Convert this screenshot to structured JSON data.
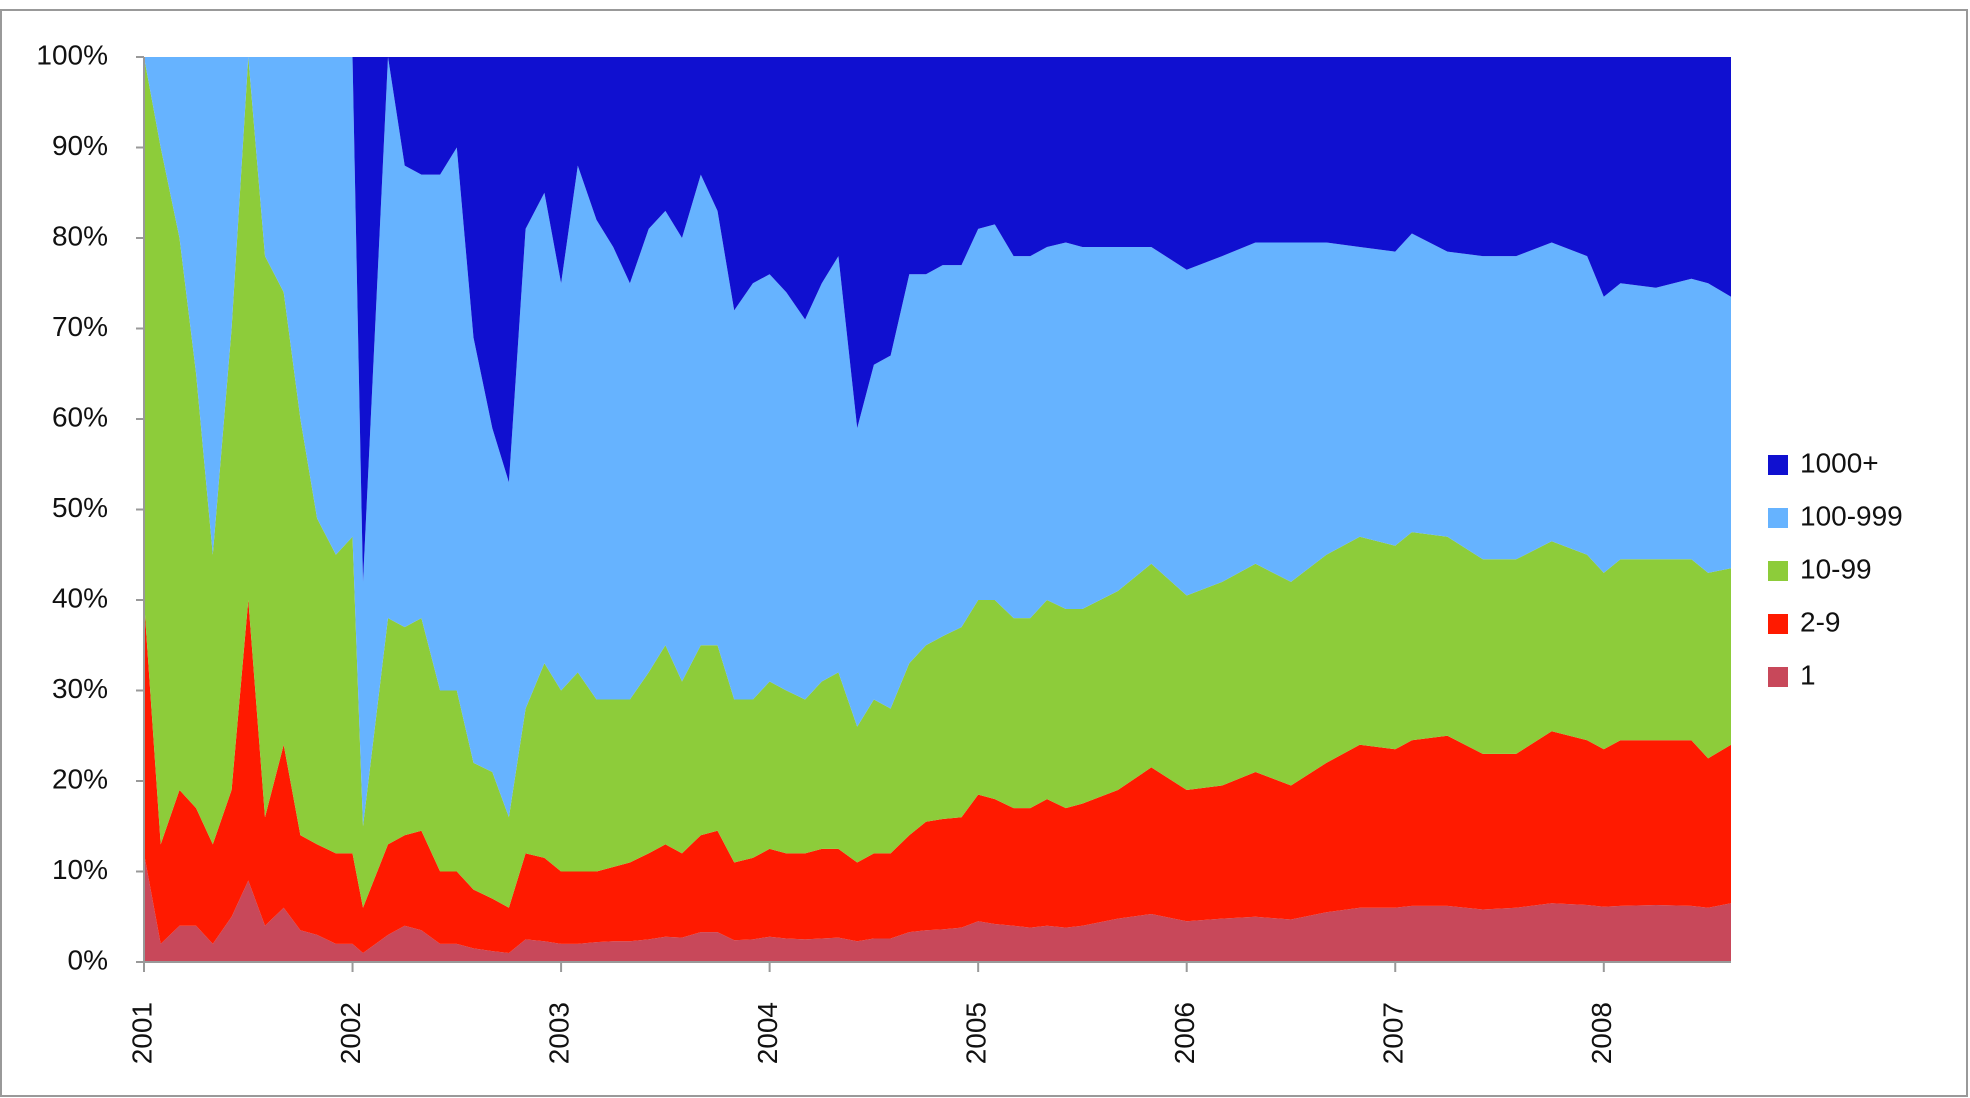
{
  "chart_data": {
    "type": "stacked-area",
    "x": [
      2001.0,
      2001.08,
      2001.17,
      2001.25,
      2001.33,
      2001.42,
      2001.5,
      2001.58,
      2001.67,
      2001.75,
      2001.83,
      2001.92,
      2002.0,
      2002.05,
      2002.17,
      2002.25,
      2002.33,
      2002.42,
      2002.5,
      2002.58,
      2002.67,
      2002.75,
      2002.83,
      2002.92,
      2003.0,
      2003.08,
      2003.17,
      2003.25,
      2003.33,
      2003.42,
      2003.5,
      2003.58,
      2003.67,
      2003.75,
      2003.83,
      2003.92,
      2004.0,
      2004.08,
      2004.17,
      2004.25,
      2004.33,
      2004.42,
      2004.5,
      2004.58,
      2004.67,
      2004.75,
      2004.83,
      2004.92,
      2005.0,
      2005.08,
      2005.17,
      2005.25,
      2005.33,
      2005.42,
      2005.5,
      2005.67,
      2005.83,
      2006.0,
      2006.17,
      2006.33,
      2006.5,
      2006.67,
      2006.83,
      2007.0,
      2007.08,
      2007.25,
      2007.42,
      2007.58,
      2007.75,
      2007.92,
      2008.0,
      2008.08,
      2008.25,
      2008.42,
      2008.5,
      2008.61
    ],
    "series": [
      {
        "name": "1",
        "color": "#c8485a",
        "values": [
          12,
          2,
          4,
          4,
          2,
          5,
          9,
          4,
          6,
          3.5,
          3,
          2,
          2,
          1,
          3,
          4,
          3.5,
          2,
          2,
          1.5,
          1.2,
          1,
          2.5,
          2.3,
          2,
          2,
          2.2,
          2.3,
          2.3,
          2.5,
          2.8,
          2.7,
          3.3,
          3.3,
          2.4,
          2.5,
          2.8,
          2.6,
          2.5,
          2.6,
          2.7,
          2.3,
          2.6,
          2.6,
          3.3,
          3.5,
          3.6,
          3.8,
          4.5,
          4.2,
          4,
          3.8,
          4,
          3.8,
          4,
          4.8,
          5.3,
          4.5,
          4.8,
          5,
          4.7,
          5.5,
          6,
          6,
          6.2,
          6.2,
          5.8,
          6,
          6.5,
          6.3,
          6.1,
          6.2,
          6.3,
          6.2,
          6,
          6.5
        ]
      },
      {
        "name": "2-9",
        "color": "#ff1a00",
        "values": [
          28,
          11,
          15,
          13,
          11,
          14,
          31,
          12,
          18,
          10.5,
          10,
          10,
          10,
          5,
          10,
          10,
          11,
          8,
          8,
          6.5,
          5.8,
          5,
          9.5,
          9.2,
          8,
          8,
          7.8,
          8.2,
          8.7,
          9.5,
          10.2,
          9.3,
          10.7,
          11.2,
          8.6,
          9,
          9.7,
          9.4,
          9.5,
          9.9,
          9.8,
          8.7,
          9.4,
          9.4,
          10.7,
          12,
          12.2,
          12.2,
          14,
          13.8,
          13,
          13.2,
          14,
          13.2,
          13.5,
          14.2,
          16.2,
          14.5,
          14.7,
          16,
          14.8,
          16.5,
          18,
          17.5,
          18.3,
          18.8,
          17.2,
          17,
          19,
          18.2,
          17.4,
          18.3,
          18.2,
          18.3,
          16.5,
          17.5
        ]
      },
      {
        "name": "10-99",
        "color": "#8dcc3a",
        "values": [
          60,
          77,
          61,
          48,
          32,
          51,
          60,
          62,
          50,
          46,
          36,
          33,
          35,
          9,
          25,
          23,
          23.5,
          20,
          20,
          14,
          14,
          10,
          16,
          21.5,
          20,
          22,
          19,
          18.5,
          18,
          20,
          22,
          19,
          21,
          20.5,
          18,
          17.5,
          18.5,
          18,
          17,
          18.5,
          19.5,
          15,
          17,
          16,
          19,
          19.5,
          20.2,
          21,
          21.5,
          22,
          21,
          21,
          22,
          22,
          21.5,
          22,
          22.5,
          21.5,
          22.5,
          23,
          22.5,
          23,
          23,
          22.5,
          23,
          22,
          21.5,
          21.5,
          21,
          20.5,
          19.5,
          20,
          20,
          20,
          20.5,
          19.5
        ]
      },
      {
        "name": "100-999",
        "color": "#66b3ff",
        "values": [
          0,
          10,
          20,
          35,
          55,
          30,
          0,
          22,
          26,
          40,
          51,
          55,
          53,
          27,
          62,
          51,
          49,
          57,
          60,
          47,
          38,
          37,
          53,
          52,
          45,
          56,
          53,
          50,
          46,
          49,
          48,
          49,
          52,
          48,
          43,
          46,
          45,
          44,
          42,
          44,
          46,
          33,
          37,
          39,
          43,
          41,
          41,
          40,
          41,
          41.5,
          40,
          40,
          39,
          40.5,
          40,
          38,
          35,
          36,
          36,
          35.5,
          37.5,
          34.5,
          32,
          32.5,
          33,
          31.5,
          33.5,
          33.5,
          33,
          33,
          30.5,
          30.5,
          30,
          31,
          32,
          30
        ]
      },
      {
        "name": "1000+",
        "color": "#1010d0",
        "values": [
          0,
          0,
          0,
          0,
          0,
          0,
          0,
          0,
          0,
          0,
          0,
          0,
          0,
          58,
          0,
          12,
          13,
          13,
          10,
          31,
          41,
          47,
          19,
          15,
          25,
          12,
          18,
          21,
          25,
          19,
          17,
          20,
          13,
          17,
          28,
          25,
          24,
          26,
          29,
          25,
          22,
          41,
          34,
          33,
          24,
          24,
          23,
          23,
          19,
          18.5,
          22,
          22,
          21,
          20.5,
          21,
          21,
          21,
          23.5,
          22,
          20.5,
          20.5,
          20.5,
          21,
          21.5,
          19.5,
          21.5,
          22,
          22,
          20.5,
          22,
          26.5,
          25,
          25.5,
          24.5,
          25,
          26.5
        ]
      }
    ],
    "xlim": [
      2001,
      2008.61
    ],
    "xticks": [
      2001,
      2002,
      2003,
      2004,
      2005,
      2006,
      2007,
      2008
    ],
    "ylim": [
      0,
      100
    ],
    "yticks": [
      {
        "value": 0,
        "label": "0%"
      },
      {
        "value": 10,
        "label": "10%"
      },
      {
        "value": 20,
        "label": "20%"
      },
      {
        "value": 30,
        "label": "30%"
      },
      {
        "value": 40,
        "label": "40%"
      },
      {
        "value": 50,
        "label": "50%"
      },
      {
        "value": 60,
        "label": "60%"
      },
      {
        "value": 70,
        "label": "70%"
      },
      {
        "value": 80,
        "label": "80%"
      },
      {
        "value": 90,
        "label": "90%"
      },
      {
        "value": 100,
        "label": "100%"
      }
    ],
    "legend": "right"
  }
}
